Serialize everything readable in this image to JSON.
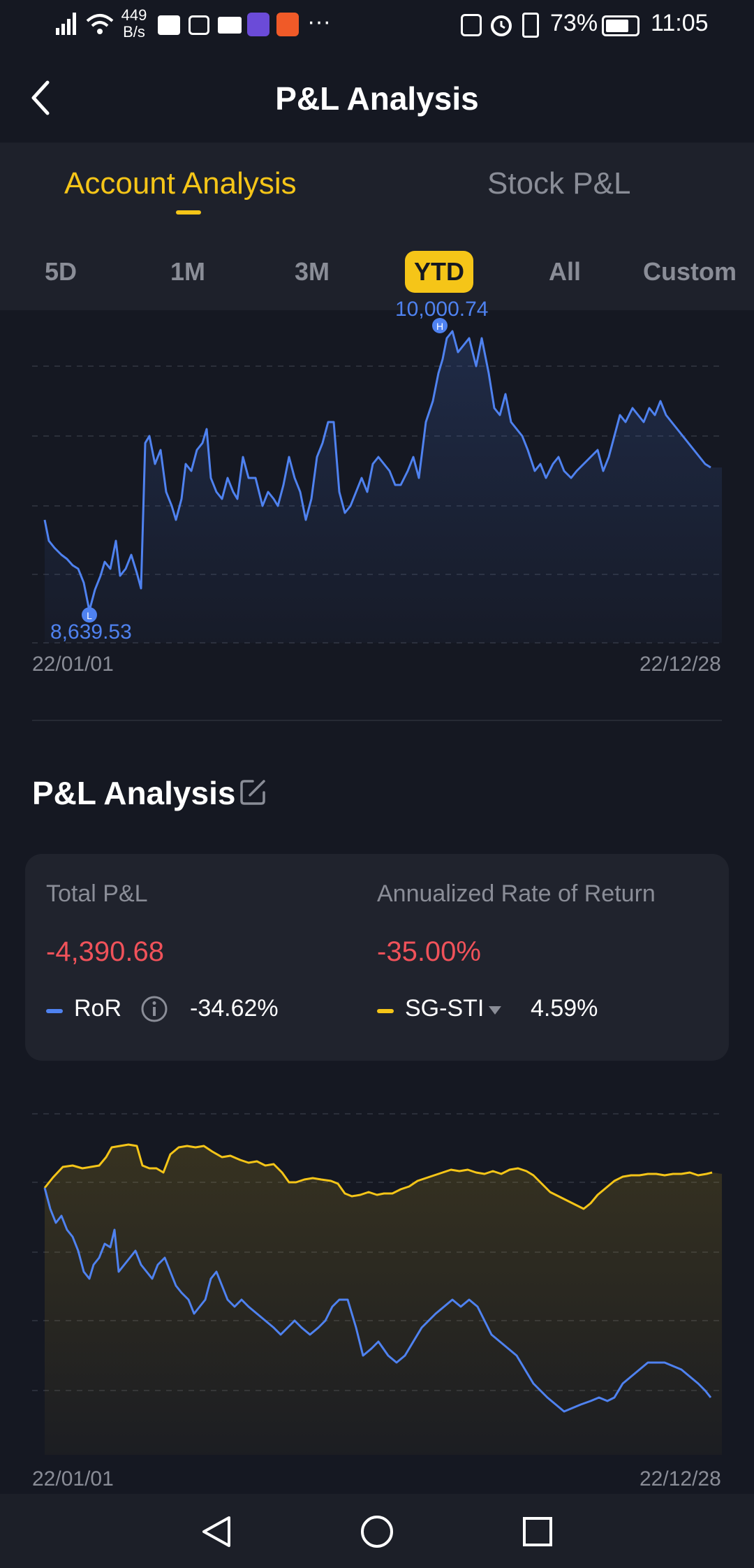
{
  "status_bar": {
    "net_speed_value": "449",
    "net_speed_unit": "B/s",
    "more": "···",
    "battery": "73%",
    "time": "11:05"
  },
  "header": {
    "title": "P&L Analysis"
  },
  "tabs": {
    "account": "Account Analysis",
    "stock": "Stock P&L"
  },
  "periods": [
    "5D",
    "1M",
    "3M",
    "YTD",
    "All",
    "Custom"
  ],
  "selected_period": "YTD",
  "chart1": {
    "high_label": "10,000.74",
    "low_label": "8,639.53",
    "start_date": "22/01/01",
    "end_date": "22/12/28"
  },
  "section": {
    "title": "P&L Analysis"
  },
  "summary": {
    "total_pl_label": "Total P&L",
    "total_pl_value": "-4,390.68",
    "annualized_label": "Annualized Rate of Return",
    "annualized_value": "-35.00%",
    "ror_label": "RoR",
    "ror_value": "-34.62%",
    "benchmark_label": "SG-STI",
    "benchmark_value": "4.59%"
  },
  "chart2": {
    "start_date": "22/01/01",
    "end_date": "22/12/28"
  },
  "colors": {
    "accent": "#f5c518",
    "line_blue": "#4f82f0",
    "negative": "#f0525a",
    "positive": "#2dc08d",
    "background": "#151822"
  }
}
